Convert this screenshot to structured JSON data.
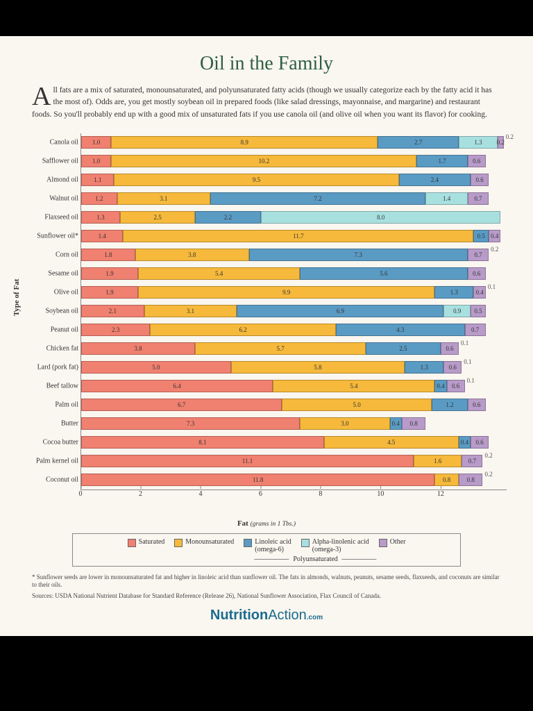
{
  "title": "Oil in the Family",
  "intro_dropcap": "A",
  "intro": "ll fats are a mix of saturated, monounsaturated, and polyunsaturated fatty acids (though we usually categorize each by the fatty acid it has the most of). Odds are, you get mostly soybean oil in prepared foods (like salad dressings, mayonnaise, and margarine) and restaurant foods. So you'll probably end up with a good mix of unsaturated fats if you use canola oil (and olive oil when you want its flavor) for cooking.",
  "ylabel": "Type of Fat",
  "xlabel_main": "Fat",
  "xlabel_sub": "(grams in 1 Tbs.)",
  "colors": {
    "saturated": "#f08070",
    "mono": "#f6b93b",
    "linoleic": "#5a9bc4",
    "alpha": "#a8e0e0",
    "other": "#b89bc9",
    "bg": "#faf6f0",
    "title": "#2d5f3f"
  },
  "xmax": 14.2,
  "xticks": [
    0,
    2,
    4,
    6,
    8,
    10,
    12
  ],
  "oils": [
    {
      "name": "Canola oil",
      "sat": 1.0,
      "mono": 8.9,
      "lin": 2.7,
      "alpha": 1.3,
      "other": 0.2,
      "overflow": "0.2"
    },
    {
      "name": "Safflower oil",
      "sat": 1.0,
      "mono": 10.2,
      "lin": 1.7,
      "alpha": 0,
      "other": 0.6
    },
    {
      "name": "Almond oil",
      "sat": 1.1,
      "mono": 9.5,
      "lin": 2.4,
      "alpha": 0,
      "other": 0.6
    },
    {
      "name": "Walnut oil",
      "sat": 1.2,
      "mono": 3.1,
      "lin": 7.2,
      "alpha": 1.4,
      "other": 0.7
    },
    {
      "name": "Flaxseed oil",
      "sat": 1.3,
      "mono": 2.5,
      "lin": 2.2,
      "alpha": 8.0,
      "other": 0
    },
    {
      "name": "Sunflower oil*",
      "sat": 1.4,
      "mono": 11.7,
      "lin": 0.5,
      "alpha": 0,
      "other": 0.4
    },
    {
      "name": "Corn oil",
      "sat": 1.8,
      "mono": 3.8,
      "lin": 7.3,
      "alpha": 0,
      "other": 0.7,
      "overflow": "0.2"
    },
    {
      "name": "Sesame oil",
      "sat": 1.9,
      "mono": 5.4,
      "lin": 5.6,
      "alpha": 0,
      "other": 0.6
    },
    {
      "name": "Olive oil",
      "sat": 1.9,
      "mono": 9.9,
      "lin": 1.3,
      "alpha": 0,
      "other": 0.4,
      "overflow": "0.1"
    },
    {
      "name": "Soybean oil",
      "sat": 2.1,
      "mono": 3.1,
      "lin": 6.9,
      "alpha": 0.9,
      "other": 0.5
    },
    {
      "name": "Peanut oil",
      "sat": 2.3,
      "mono": 6.2,
      "lin": 4.3,
      "alpha": 0,
      "other": 0.7
    },
    {
      "name": "Chicken fat",
      "sat": 3.8,
      "mono": 5.7,
      "lin": 2.5,
      "alpha": 0,
      "other": 0.6,
      "overflow": "0.1"
    },
    {
      "name": "Lard (pork fat)",
      "sat": 5.0,
      "mono": 5.8,
      "lin": 1.3,
      "alpha": 0,
      "other": 0.6,
      "overflow": "0.1"
    },
    {
      "name": "Beef tallow",
      "sat": 6.4,
      "mono": 5.4,
      "lin": 0.4,
      "alpha": 0,
      "other": 0.6,
      "overflow": "0.1"
    },
    {
      "name": "Palm oil",
      "sat": 6.7,
      "mono": 5.0,
      "lin": 1.2,
      "alpha": 0,
      "other": 0.6
    },
    {
      "name": "Butter",
      "sat": 7.3,
      "mono": 3.0,
      "lin": 0.4,
      "alpha": 0,
      "other": 0.8
    },
    {
      "name": "Cocoa butter",
      "sat": 8.1,
      "mono": 4.5,
      "lin": 0.4,
      "alpha": 0,
      "other": 0.6
    },
    {
      "name": "Palm kernel oil",
      "sat": 11.1,
      "mono": 1.6,
      "lin": 0,
      "alpha": 0,
      "other": 0.7,
      "overflow": "0.2"
    },
    {
      "name": "Coconut oil",
      "sat": 11.8,
      "mono": 0.8,
      "lin": 0,
      "alpha": 0,
      "other": 0.8,
      "overflow": "0.2"
    }
  ],
  "legend": [
    {
      "label": "Saturated",
      "key": "saturated"
    },
    {
      "label": "Monounsaturated",
      "key": "mono"
    },
    {
      "label": "Linoleic acid\n(omega-6)",
      "key": "linoleic"
    },
    {
      "label": "Alpha-linolenic acid\n(omega-3)",
      "key": "alpha"
    },
    {
      "label": "Other",
      "key": "other"
    }
  ],
  "poly_label": "Polyunsaturated",
  "footnote": "* Sunflower seeds are lower in monounsaturated fat and higher in linoleic acid than sunflower oil. The fats in almonds, walnuts, peanuts, sesame seeds, flaxseeds, and coconuts are similar to their oils.",
  "sources": "Sources: USDA National Nutrient Database for Standard Reference (Release 26), National Sunflower Association, Flax Council of Canada.",
  "brand_bold": "Nutrition",
  "brand_thin": "Action",
  "brand_com": ".com"
}
